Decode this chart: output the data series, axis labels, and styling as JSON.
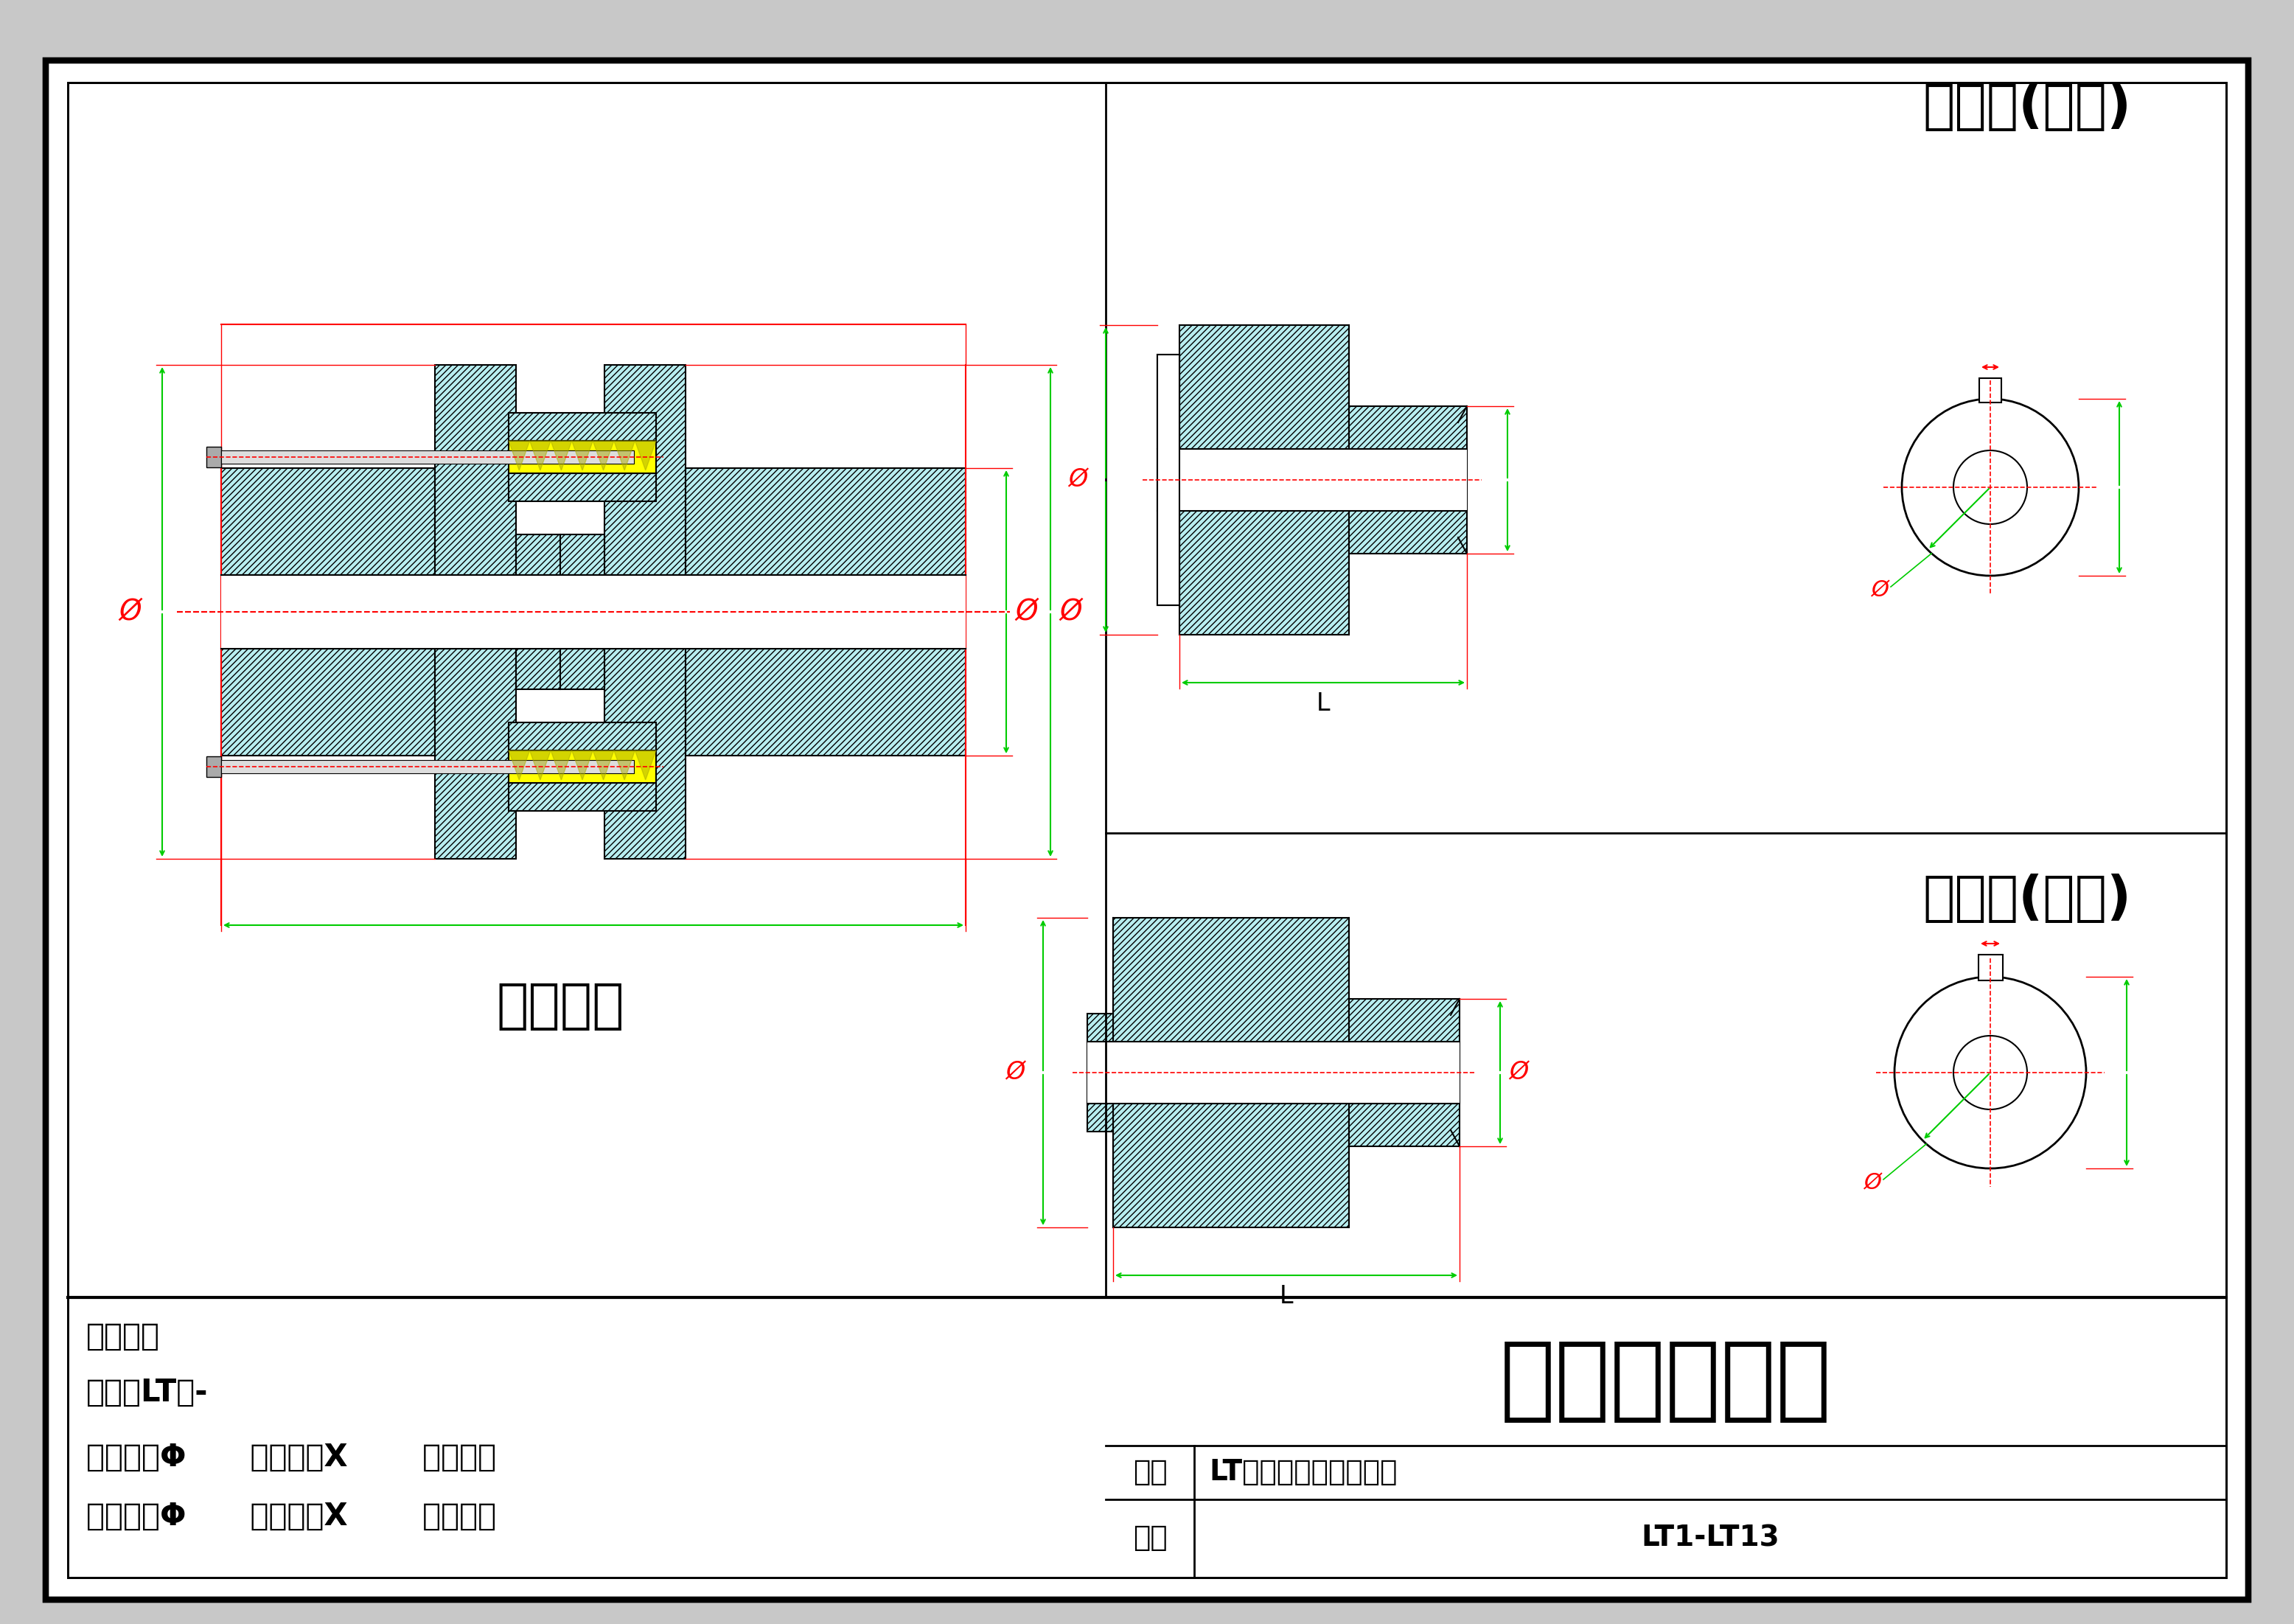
{
  "bg_color": "#c8c8c8",
  "paper_color": "#ffffff",
  "hatch_fill": "#b8eef0",
  "yellow_fill": "#ffff00",
  "red_color": "#ff0000",
  "green_color": "#00cc00",
  "black": "#000000",
  "title_company": "泊头友谊机械",
  "title_product": "LT型弹性套柱销联轴器",
  "title_apply": "LT1-LT13",
  "label_name": "名称",
  "label_apply": "适用",
  "text_waizi": "文字标注",
  "text_xinghao": "型号：LT型-",
  "text_zhudong_spec": "主动端：Φ      （孔径）X       （孔长）",
  "text_congdong_spec": "从动端：Φ      （孔径）X       （孔长）",
  "text_waixing": "外形尺寸",
  "text_zhudong_label": "主动端(薄盘)",
  "text_congdong_label": "从动端(厚盘)"
}
